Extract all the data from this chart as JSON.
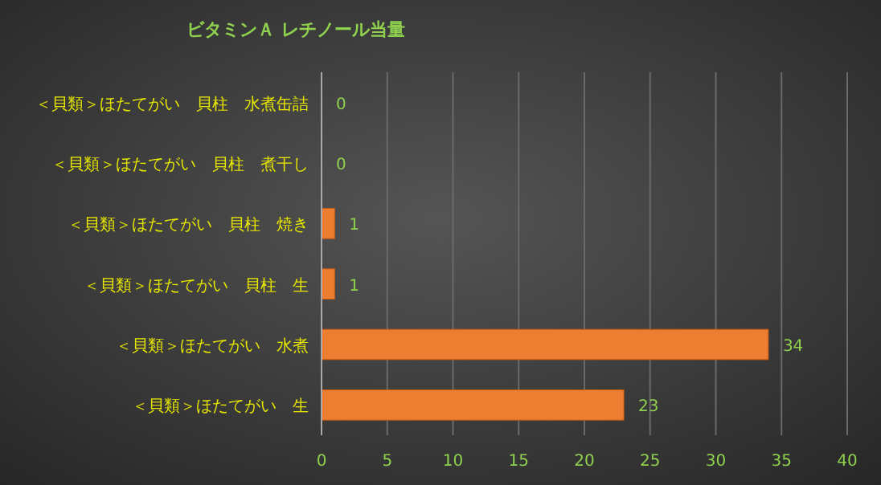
{
  "chart_data": {
    "type": "bar",
    "orientation": "horizontal",
    "title": "ビタミンＡ レチノール当量",
    "categories": [
      "＜貝類＞ほたてがい　貝柱　水煮缶詰",
      "＜貝類＞ほたてがい　貝柱　煮干し",
      "＜貝類＞ほたてがい　貝柱　焼き",
      "＜貝類＞ほたてがい　貝柱　生",
      "＜貝類＞ほたてがい　水煮",
      "＜貝類＞ほたてがい　生"
    ],
    "values": [
      0,
      0,
      1,
      1,
      34,
      23
    ],
    "color": "#ed7d31",
    "xlim": [
      0,
      40
    ],
    "xticks": [
      0,
      5,
      10,
      15,
      20,
      25,
      30,
      35,
      40
    ],
    "grid": "x",
    "data_labels": true
  }
}
